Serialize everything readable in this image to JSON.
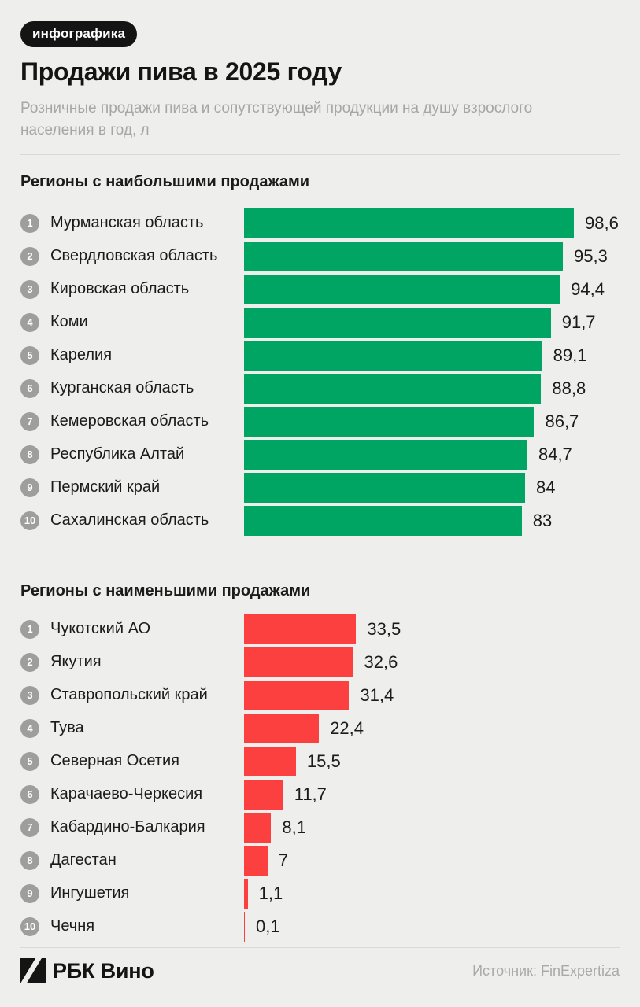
{
  "badge": "инфографика",
  "title": "Продажи пива в 2025 году",
  "subtitle": "Розничные продажи пива и сопутствующей продукции на душу взрослого населения в год, л",
  "footer": {
    "brand": "РБК Вино",
    "source": "Источник: FinExpertiza"
  },
  "colors": {
    "background": "#EEEEEC",
    "green": "#00A463",
    "red": "#FC3F3F",
    "rank_circle": "#9E9E9C",
    "muted_text": "#A6A6A4"
  },
  "chart_data": [
    {
      "type": "bar",
      "orientation": "horizontal",
      "title": "Регионы с наибольшими продажами",
      "color": "#00A463",
      "xlim": [
        0,
        100
      ],
      "unit": "л",
      "categories": [
        "Мурманская область",
        "Свердловская область",
        "Кировская область",
        "Коми",
        "Карелия",
        "Курганская область",
        "Кемеровская область",
        "Республика Алтай",
        "Пермский край",
        "Сахалинская область"
      ],
      "values": [
        98.6,
        95.3,
        94.4,
        91.7,
        89.1,
        88.8,
        86.7,
        84.7,
        84,
        83
      ],
      "value_labels": [
        "98,6",
        "95,3",
        "94,4",
        "91,7",
        "89,1",
        "88,8",
        "86,7",
        "84,7",
        "84",
        "83"
      ],
      "ranks": [
        "1",
        "2",
        "3",
        "4",
        "5",
        "6",
        "7",
        "8",
        "9",
        "10"
      ]
    },
    {
      "type": "bar",
      "orientation": "horizontal",
      "title": "Регионы с наименьшими продажами",
      "color": "#FC3F3F",
      "xlim": [
        0,
        100
      ],
      "unit": "л",
      "categories": [
        "Чукотский АО",
        "Якутия",
        "Ставропольский край",
        "Тува",
        "Северная Осетия",
        "Карачаево-Черкесия",
        "Кабардино-Балкария",
        "Дагестан",
        "Ингушетия",
        "Чечня"
      ],
      "values": [
        33.5,
        32.6,
        31.4,
        22.4,
        15.5,
        11.7,
        8.1,
        7,
        1.1,
        0.1
      ],
      "value_labels": [
        "33,5",
        "32,6",
        "31,4",
        "22,4",
        "15,5",
        "11,7",
        "8,1",
        "7",
        "1,1",
        "0,1"
      ],
      "ranks": [
        "1",
        "2",
        "3",
        "4",
        "5",
        "6",
        "7",
        "8",
        "9",
        "10"
      ]
    }
  ]
}
